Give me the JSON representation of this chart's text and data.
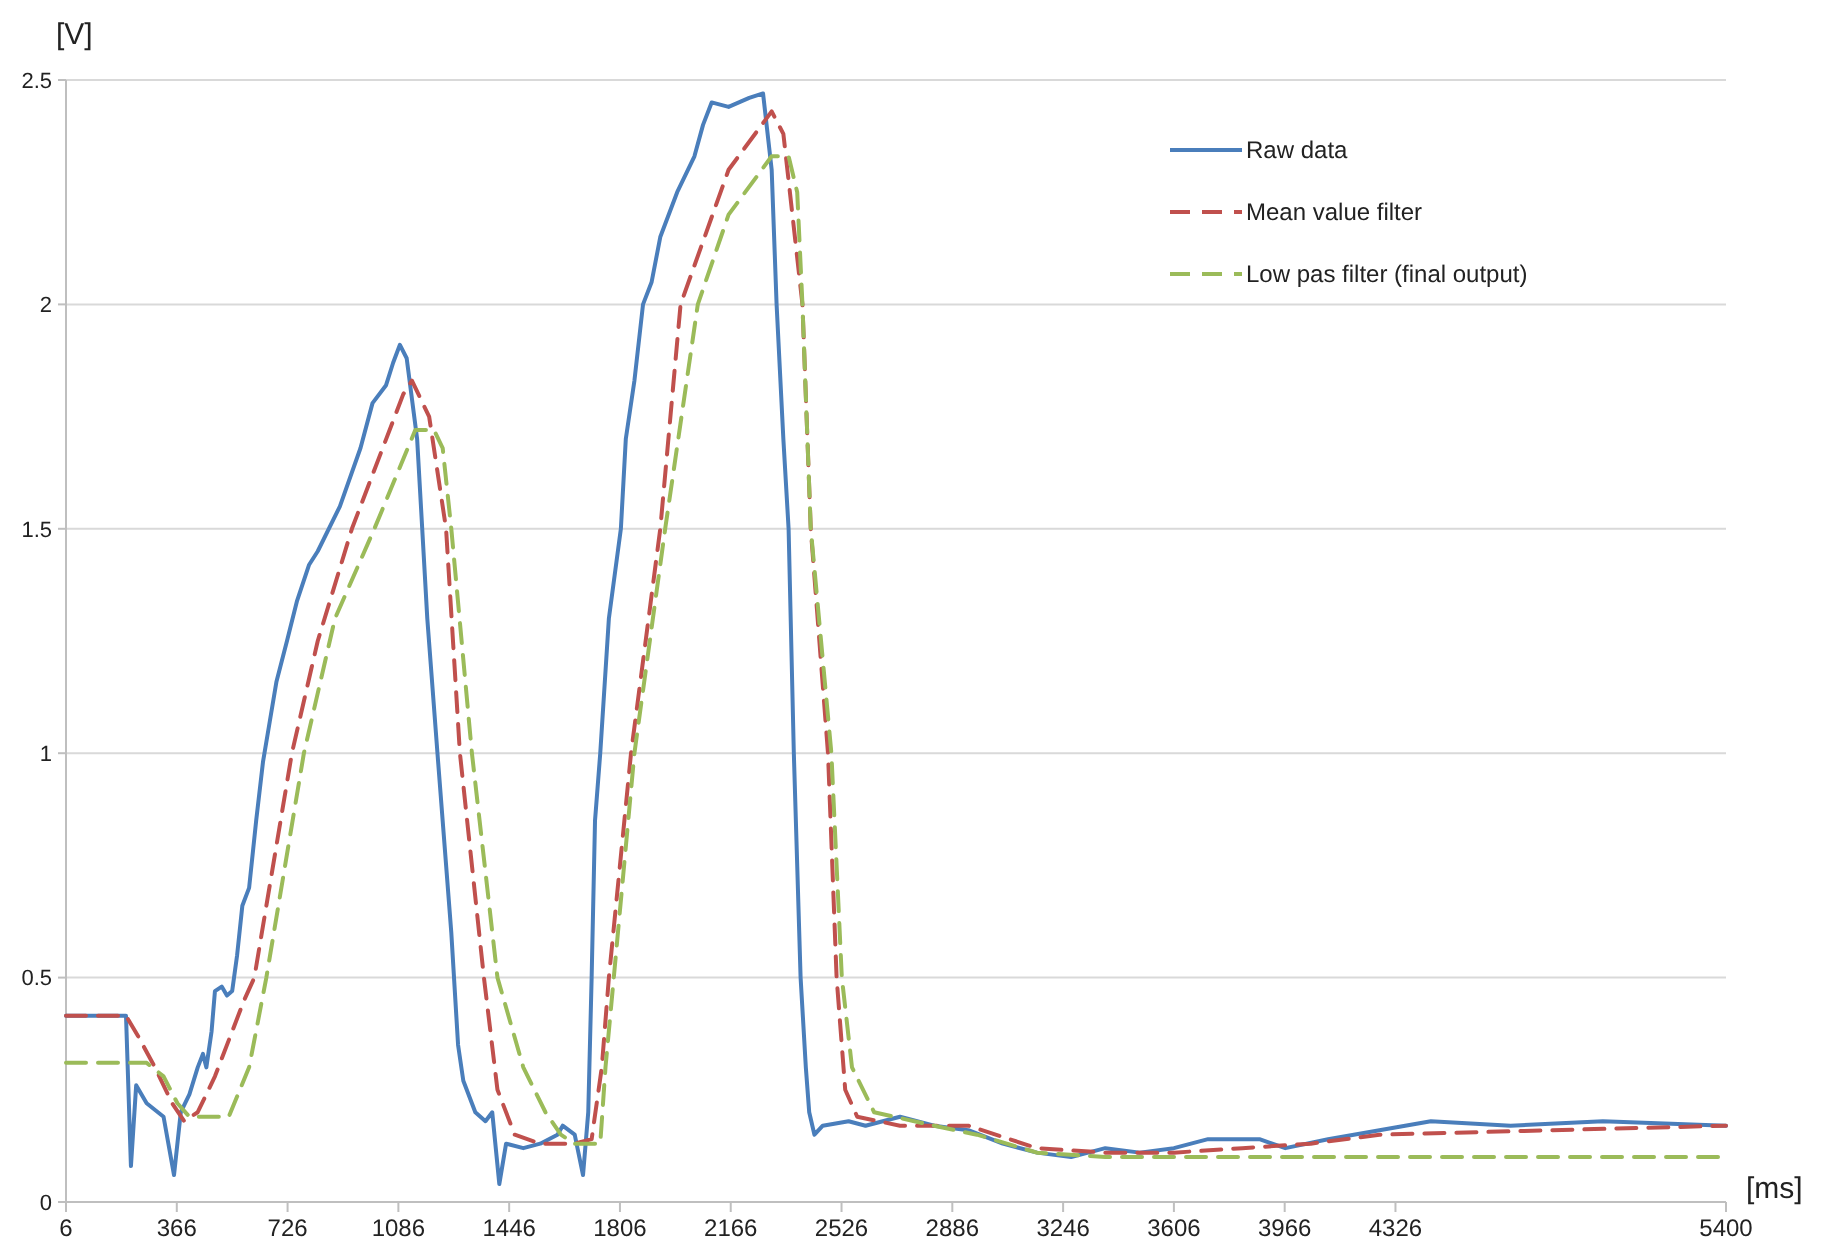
{
  "chart_data": {
    "type": "line",
    "xlabel": "[ms]",
    "ylabel": "[V]",
    "xlim": [
      6,
      5400
    ],
    "ylim": [
      0,
      2.5
    ],
    "xticks": [
      6,
      366,
      726,
      1086,
      1446,
      1806,
      2166,
      2526,
      2886,
      3246,
      3606,
      3966,
      4326,
      5400
    ],
    "yticks": [
      0,
      0.5,
      1,
      1.5,
      2,
      2.5
    ],
    "grid": "y",
    "legend": "top right",
    "marker": "none",
    "series": [
      {
        "name": "Raw data",
        "color": "#4a7ebb",
        "line_style": "solid",
        "x": [
          6,
          201,
          217,
          234,
          268,
          323,
          357,
          379,
          407,
          434,
          451,
          462,
          479,
          490,
          512,
          529,
          546,
          562,
          579,
          601,
          624,
          646,
          668,
          690,
          724,
          757,
          796,
          824,
          896,
          963,
          1002,
          1046,
          1069,
          1091,
          1113,
          1147,
          1180,
          1213,
          1258,
          1280,
          1297,
          1336,
          1369,
          1391,
          1414,
          1436,
          1492,
          1547,
          1603,
          1620,
          1659,
          1686,
          1703,
          1714,
          1725,
          1742,
          1770,
          1809,
          1825,
          1853,
          1881,
          1909,
          1937,
          1992,
          2048,
          2076,
          2104,
          2159,
          2226,
          2271,
          2299,
          2315,
          2337,
          2354,
          2371,
          2393,
          2410,
          2421,
          2438,
          2465,
          2549,
          2604,
          2716,
          2827,
          2938,
          3050,
          3161,
          3272,
          3383,
          3495,
          3606,
          3717,
          3884,
          3968,
          4107,
          4274,
          4441,
          4700,
          5000,
          5400
        ],
        "values": [
          0.415,
          0.415,
          0.08,
          0.26,
          0.22,
          0.19,
          0.06,
          0.2,
          0.24,
          0.3,
          0.33,
          0.3,
          0.38,
          0.47,
          0.48,
          0.46,
          0.47,
          0.55,
          0.66,
          0.7,
          0.85,
          0.98,
          1.07,
          1.16,
          1.25,
          1.34,
          1.42,
          1.45,
          1.55,
          1.68,
          1.78,
          1.82,
          1.87,
          1.91,
          1.88,
          1.7,
          1.3,
          1.0,
          0.6,
          0.35,
          0.27,
          0.2,
          0.18,
          0.2,
          0.04,
          0.13,
          0.12,
          0.13,
          0.15,
          0.17,
          0.15,
          0.06,
          0.2,
          0.5,
          0.85,
          1.0,
          1.3,
          1.5,
          1.7,
          1.83,
          2.0,
          2.05,
          2.15,
          2.25,
          2.33,
          2.4,
          2.45,
          2.44,
          2.46,
          2.47,
          2.3,
          2.0,
          1.7,
          1.5,
          1.0,
          0.5,
          0.3,
          0.2,
          0.15,
          0.17,
          0.18,
          0.17,
          0.19,
          0.17,
          0.16,
          0.13,
          0.11,
          0.1,
          0.12,
          0.11,
          0.12,
          0.14,
          0.14,
          0.12,
          0.14,
          0.16,
          0.18,
          0.17,
          0.18,
          0.17
        ]
      },
      {
        "name": "Mean value filter",
        "color": "#c0504d",
        "line_style": "dashed",
        "x": [
          6,
          201,
          240,
          295,
          351,
          390,
          434,
          490,
          585,
          618,
          740,
          824,
          935,
          1102,
          1130,
          1186,
          1241,
          1286,
          1364,
          1408,
          1464,
          1547,
          1659,
          1714,
          1747,
          1770,
          1842,
          1937,
          2003,
          2159,
          2299,
          2337,
          2399,
          2426,
          2482,
          2510,
          2538,
          2577,
          2716,
          2938,
          3161,
          3383,
          3606,
          3828,
          4051,
          4274,
          5400
        ],
        "values": [
          0.415,
          0.415,
          0.37,
          0.3,
          0.22,
          0.18,
          0.2,
          0.28,
          0.45,
          0.5,
          1.0,
          1.25,
          1.5,
          1.8,
          1.83,
          1.75,
          1.5,
          1.0,
          0.5,
          0.25,
          0.15,
          0.13,
          0.13,
          0.14,
          0.3,
          0.5,
          1.0,
          1.5,
          2.0,
          2.3,
          2.43,
          2.38,
          2.0,
          1.5,
          1.0,
          0.5,
          0.25,
          0.19,
          0.17,
          0.17,
          0.12,
          0.11,
          0.11,
          0.12,
          0.13,
          0.15,
          0.17
        ]
      },
      {
        "name": "Low pas filter (final output)",
        "color": "#9bbb59",
        "line_style": "dashed",
        "x": [
          6,
          268,
          323,
          368,
          407,
          535,
          601,
          657,
          779,
          880,
          1008,
          1141,
          1202,
          1230,
          1258,
          1325,
          1408,
          1492,
          1564,
          1614,
          1659,
          1742,
          1759,
          1786,
          1853,
          1953,
          2059,
          2159,
          2299,
          2354,
          2382,
          2399,
          2426,
          2493,
          2527,
          2560,
          2632,
          2827,
          2966,
          3161,
          3383,
          5400
        ],
        "values": [
          0.31,
          0.31,
          0.28,
          0.22,
          0.19,
          0.19,
          0.3,
          0.5,
          1.0,
          1.3,
          1.5,
          1.72,
          1.72,
          1.68,
          1.5,
          1.0,
          0.5,
          0.3,
          0.2,
          0.15,
          0.13,
          0.13,
          0.3,
          0.5,
          1.0,
          1.5,
          2.0,
          2.2,
          2.33,
          2.33,
          2.25,
          2.0,
          1.5,
          1.0,
          0.5,
          0.3,
          0.2,
          0.17,
          0.15,
          0.11,
          0.1,
          0.1
        ]
      }
    ]
  }
}
